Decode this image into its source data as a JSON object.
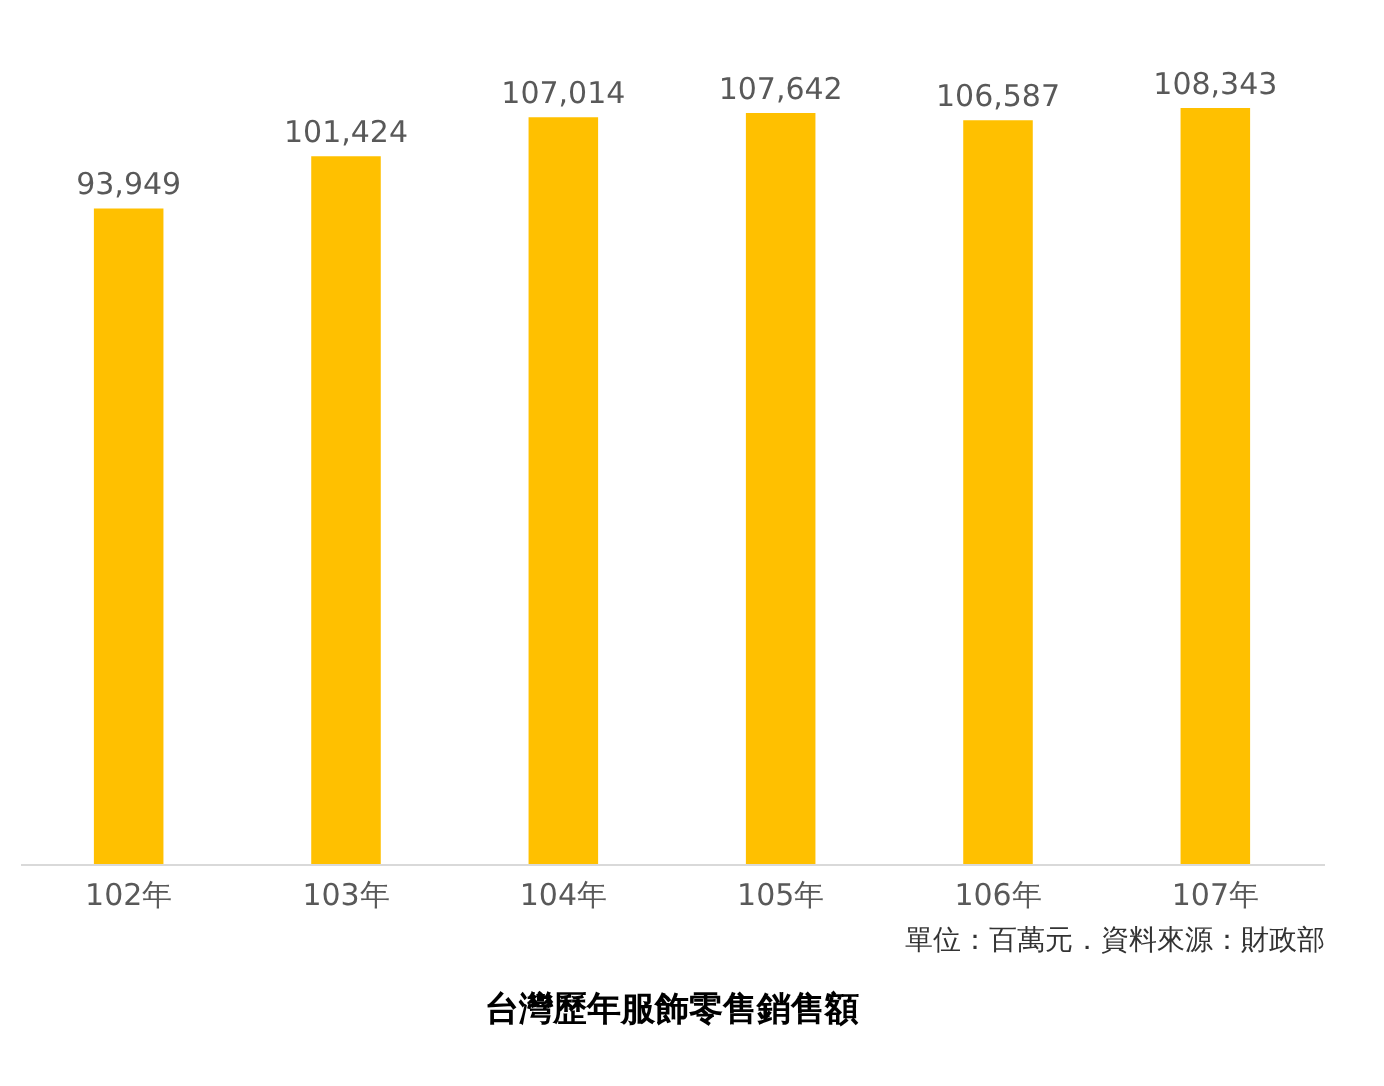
{
  "chart_data": {
    "type": "bar",
    "title": "台灣歷年服飾零售銷售額",
    "categories": [
      "102年",
      "103年",
      "104年",
      "105年",
      "106年",
      "107年"
    ],
    "values": [
      93949,
      101424,
      107014,
      107642,
      106587,
      108343
    ],
    "value_labels": [
      "93,949",
      "101,424",
      "107,014",
      "107,642",
      "106,587",
      "108,343"
    ],
    "color": "#ffc000",
    "tick_labels": "x",
    "grid": false,
    "annotations": [
      "單位：百萬元．資料來源：財政部"
    ]
  }
}
